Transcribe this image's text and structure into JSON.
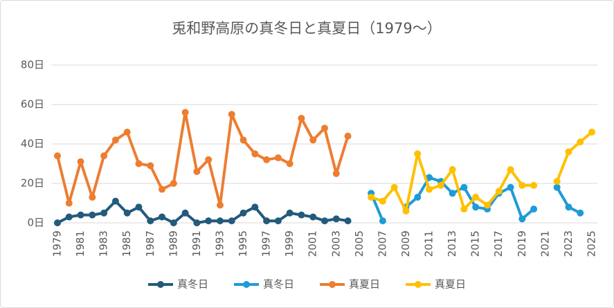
{
  "chart_data": {
    "type": "line",
    "title": "兎和野高原の真冬日と真夏日（1979～）",
    "categories": [
      "1979",
      null,
      "1981",
      null,
      "1983",
      null,
      "1985",
      null,
      "1987",
      null,
      "1989",
      null,
      "1991",
      null,
      "1993",
      null,
      "1995",
      null,
      "1997",
      null,
      "1999",
      null,
      "2001",
      null,
      "2003",
      null,
      "2005",
      null,
      "2007",
      null,
      "2009",
      null,
      "2011",
      null,
      "2013",
      null,
      "2015",
      null,
      "2017",
      null,
      "2019",
      null,
      "2021",
      null,
      "2023",
      null,
      "2025"
    ],
    "series": [
      {
        "name": "真冬日",
        "color": "#235a7c",
        "values": [
          0,
          3,
          4,
          4,
          5,
          11,
          5,
          8,
          1,
          3,
          0,
          5,
          0,
          1,
          1,
          1,
          5,
          8,
          1,
          1,
          5,
          4,
          3,
          1,
          2,
          1,
          null,
          null,
          null,
          null,
          null,
          null,
          null,
          null,
          null,
          null,
          null,
          null,
          null,
          null,
          null,
          null,
          null,
          null,
          null,
          null,
          null
        ]
      },
      {
        "name": "真冬日",
        "color": "#1f9bd7",
        "values": [
          null,
          null,
          null,
          null,
          null,
          null,
          null,
          null,
          null,
          null,
          null,
          null,
          null,
          null,
          null,
          null,
          null,
          null,
          null,
          null,
          null,
          null,
          null,
          null,
          null,
          null,
          null,
          15,
          1,
          null,
          8,
          13,
          23,
          21,
          15,
          18,
          8,
          7,
          15,
          18,
          2,
          7,
          null,
          18,
          8,
          5,
          null
        ]
      },
      {
        "name": "真夏日",
        "color": "#ed7d31",
        "values": [
          34,
          10,
          31,
          13,
          34,
          42,
          46,
          30,
          29,
          17,
          20,
          56,
          26,
          32,
          9,
          55,
          42,
          35,
          32,
          33,
          30,
          53,
          42,
          48,
          25,
          44,
          null,
          null,
          null,
          null,
          null,
          null,
          null,
          null,
          null,
          null,
          null,
          null,
          null,
          null,
          null,
          null,
          null,
          null,
          null,
          null,
          null
        ]
      },
      {
        "name": "真夏日",
        "color": "#ffc000",
        "values": [
          null,
          null,
          null,
          null,
          null,
          null,
          null,
          null,
          null,
          null,
          null,
          null,
          null,
          null,
          null,
          null,
          null,
          null,
          null,
          null,
          null,
          null,
          null,
          null,
          null,
          null,
          null,
          13,
          11,
          18,
          6,
          35,
          17,
          19,
          27,
          7,
          13,
          9,
          16,
          27,
          19,
          19,
          null,
          21,
          36,
          41,
          46
        ]
      }
    ],
    "ylim": [
      0,
      80
    ],
    "yticks": [
      {
        "value": 0,
        "label": "0日"
      },
      {
        "value": 20,
        "label": "20日"
      },
      {
        "value": 40,
        "label": "40日"
      },
      {
        "value": 60,
        "label": "60日"
      },
      {
        "value": 80,
        "label": "80日"
      }
    ],
    "grid": true,
    "legend": "bottom"
  }
}
